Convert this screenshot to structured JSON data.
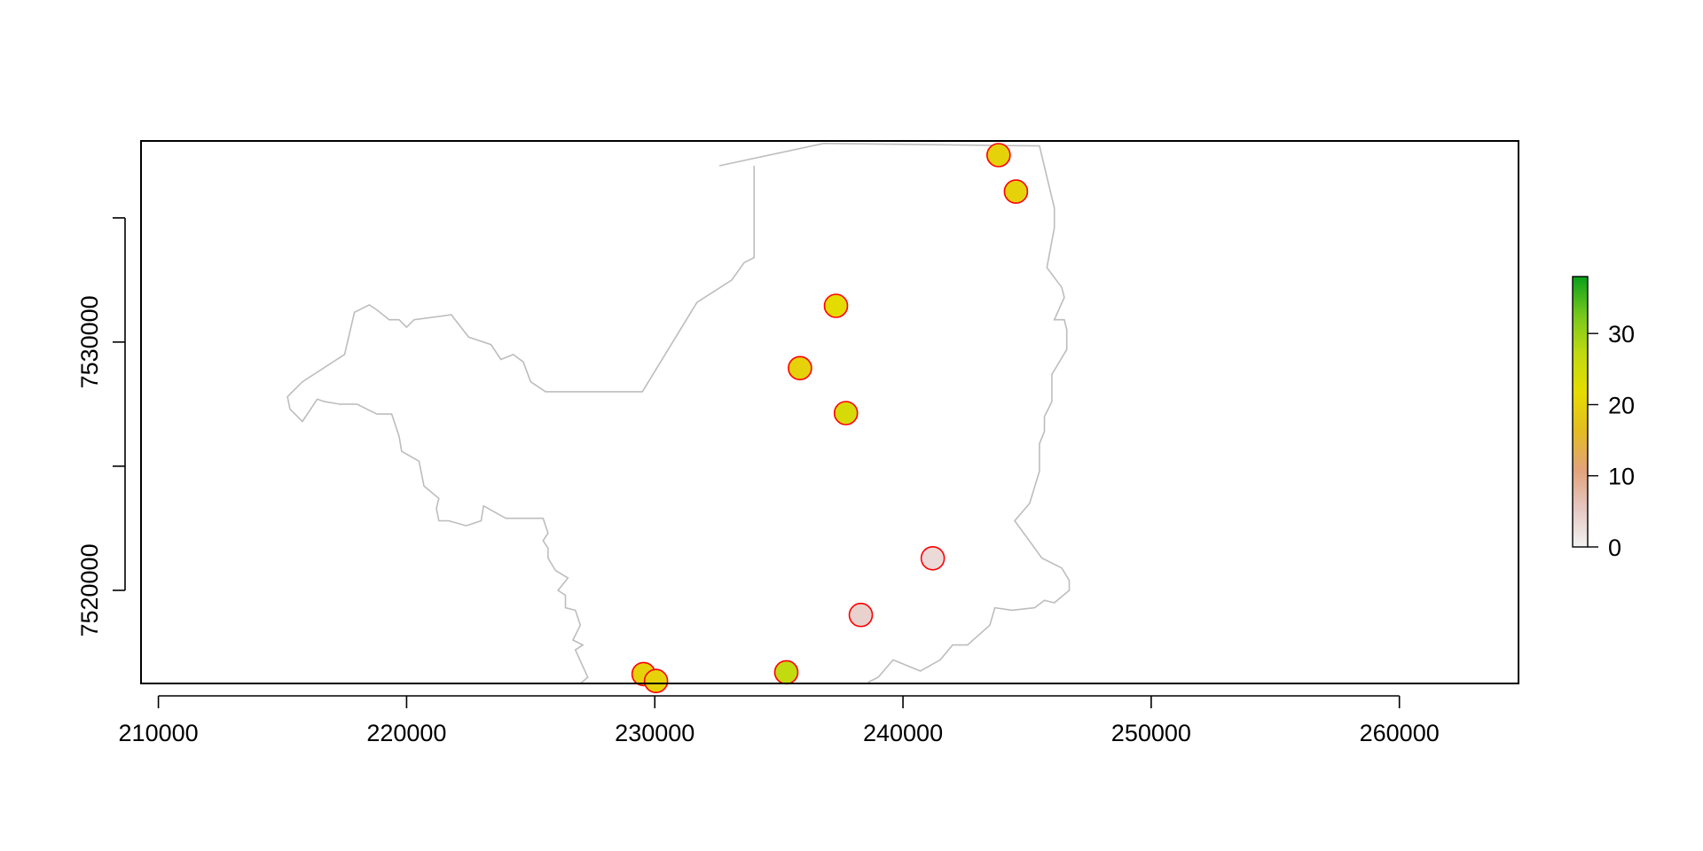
{
  "chart_data": {
    "type": "scatter",
    "title": "",
    "xlabel": "",
    "ylabel": "",
    "xlim": [
      209300,
      264800
    ],
    "ylim": [
      7516250,
      7538100
    ],
    "x_ticks": [
      210000,
      220000,
      230000,
      240000,
      250000,
      260000
    ],
    "y_ticks": [
      7520000,
      7530000
    ],
    "y_minor_ticks": [
      7520000,
      7525000,
      7530000,
      7535000
    ],
    "grid": false,
    "legend": "colorbar-right",
    "colorbar": {
      "range": [
        0,
        38
      ],
      "ticks": [
        0,
        10,
        20,
        30
      ],
      "colors": [
        "#f2f2f2",
        "#e6c7c1",
        "#e2a27a",
        "#e4bc22",
        "#e6dc00",
        "#c1da10",
        "#77c81c",
        "#08a01a"
      ]
    },
    "boundary_color": "#bdbdbd",
    "marker_edge_color": "#ff0000",
    "points": [
      {
        "x": 243850,
        "y": 7537530,
        "value": 20
      },
      {
        "x": 244550,
        "y": 7536060,
        "value": 20
      },
      {
        "x": 237300,
        "y": 7531460,
        "value": 22
      },
      {
        "x": 235850,
        "y": 7528950,
        "value": 20
      },
      {
        "x": 237700,
        "y": 7527140,
        "value": 24
      },
      {
        "x": 241200,
        "y": 7521290,
        "value": 3
      },
      {
        "x": 238300,
        "y": 7519010,
        "value": 4
      },
      {
        "x": 235300,
        "y": 7516700,
        "value": 27
      },
      {
        "x": 229550,
        "y": 7516630,
        "value": 20
      },
      {
        "x": 230050,
        "y": 7516350,
        "value": 20
      }
    ],
    "boundary": [
      [
        232600,
        7537100
      ],
      [
        236800,
        7538000
      ],
      [
        245500,
        7537900
      ],
      [
        246100,
        7535400
      ],
      [
        246100,
        7534600
      ],
      [
        245800,
        7533000
      ],
      [
        246400,
        7532200
      ],
      [
        246500,
        7531800
      ],
      [
        246100,
        7530900
      ],
      [
        246500,
        7530900
      ],
      [
        246600,
        7530500
      ],
      [
        246600,
        7529700
      ],
      [
        246000,
        7528700
      ],
      [
        246000,
        7527600
      ],
      [
        245700,
        7527000
      ],
      [
        245700,
        7526400
      ],
      [
        245500,
        7525900
      ],
      [
        245500,
        7524800
      ],
      [
        245100,
        7523500
      ],
      [
        244500,
        7522800
      ],
      [
        245600,
        7521300
      ],
      [
        246400,
        7520900
      ],
      [
        246700,
        7520400
      ],
      [
        246700,
        7520000
      ],
      [
        246100,
        7519500
      ],
      [
        245700,
        7519600
      ],
      [
        245300,
        7519300
      ],
      [
        244400,
        7519200
      ],
      [
        243700,
        7519300
      ],
      [
        243500,
        7518600
      ],
      [
        242600,
        7517800
      ],
      [
        242000,
        7517800
      ],
      [
        241500,
        7517200
      ],
      [
        240700,
        7516750
      ],
      [
        239600,
        7517200
      ],
      [
        239000,
        7516500
      ],
      [
        238600,
        7516300
      ]
    ],
    "boundary_west": [
      [
        227000,
        7516250
      ],
      [
        227300,
        7516500
      ],
      [
        226800,
        7517600
      ],
      [
        227100,
        7517800
      ],
      [
        226700,
        7518000
      ],
      [
        227000,
        7518600
      ],
      [
        226800,
        7519200
      ],
      [
        226400,
        7519300
      ],
      [
        226400,
        7519800
      ],
      [
        226100,
        7520000
      ],
      [
        226500,
        7520500
      ],
      [
        226000,
        7520800
      ],
      [
        225700,
        7521300
      ],
      [
        225700,
        7521700
      ],
      [
        225500,
        7522000
      ],
      [
        225700,
        7522300
      ],
      [
        225500,
        7522900
      ],
      [
        224000,
        7522900
      ],
      [
        223100,
        7523400
      ],
      [
        223000,
        7522800
      ],
      [
        222400,
        7522600
      ],
      [
        221700,
        7522800
      ],
      [
        221300,
        7522800
      ],
      [
        221200,
        7523300
      ],
      [
        221300,
        7523700
      ],
      [
        220700,
        7524200
      ],
      [
        220500,
        7525200
      ],
      [
        219800,
        7525600
      ],
      [
        219700,
        7526200
      ],
      [
        219400,
        7527100
      ],
      [
        218800,
        7527100
      ],
      [
        218000,
        7527500
      ],
      [
        217300,
        7527500
      ],
      [
        216700,
        7527600
      ],
      [
        216400,
        7527700
      ],
      [
        215800,
        7526800
      ],
      [
        215300,
        7527300
      ],
      [
        215200,
        7527800
      ],
      [
        215800,
        7528400
      ],
      [
        217500,
        7529500
      ],
      [
        217900,
        7531200
      ],
      [
        218500,
        7531500
      ],
      [
        218800,
        7531300
      ],
      [
        219300,
        7530900
      ],
      [
        219700,
        7530900
      ],
      [
        220000,
        7530600
      ],
      [
        220300,
        7530900
      ],
      [
        221800,
        7531100
      ],
      [
        222500,
        7530200
      ],
      [
        223400,
        7529900
      ],
      [
        223800,
        7529300
      ],
      [
        224300,
        7529500
      ],
      [
        224700,
        7529200
      ],
      [
        225000,
        7528400
      ],
      [
        225600,
        7528000
      ],
      [
        229500,
        7528000
      ],
      [
        231700,
        7531600
      ],
      [
        233100,
        7532500
      ],
      [
        233600,
        7533200
      ],
      [
        234000,
        7533400
      ],
      [
        234000,
        7537100
      ]
    ]
  }
}
